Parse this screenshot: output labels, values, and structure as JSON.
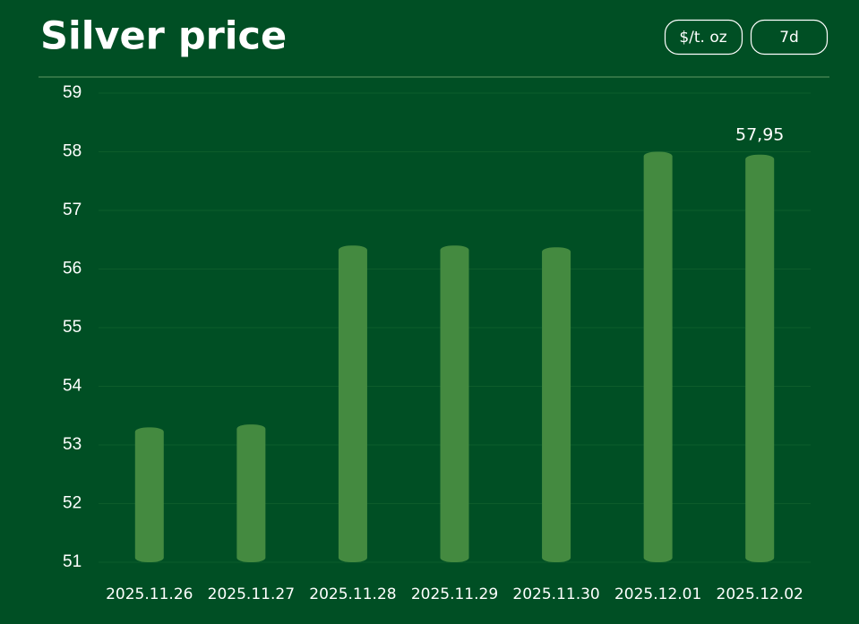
{
  "chart_data": {
    "type": "bar",
    "title": "Silver price",
    "controls": [
      "$/t. oz",
      "7d"
    ],
    "categories": [
      "2025.11.26",
      "2025.11.27",
      "2025.11.28",
      "2025.11.29",
      "2025.11.30",
      "2025.12.01",
      "2025.12.02"
    ],
    "values": [
      53.3,
      53.35,
      56.4,
      56.4,
      56.37,
      58.0,
      57.95
    ],
    "value_labels": [
      null,
      null,
      null,
      null,
      null,
      null,
      "57,95"
    ],
    "color": "#448a40",
    "ylim": [
      51,
      59
    ],
    "yticks": [
      51,
      52,
      53,
      54,
      55,
      56,
      57,
      58,
      59
    ],
    "grid": true
  }
}
